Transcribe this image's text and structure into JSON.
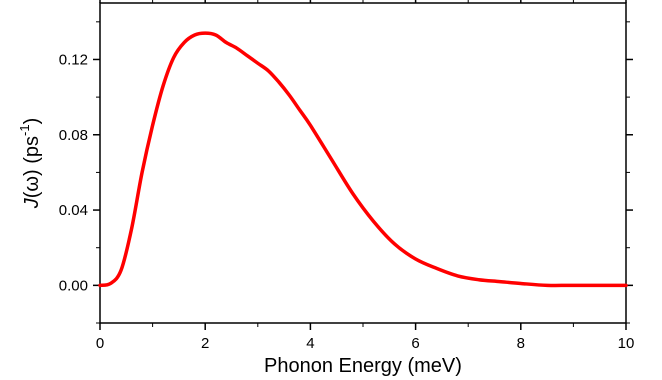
{
  "chart_data": {
    "type": "line",
    "title": "",
    "xlabel": "Phonon Energy (meV)",
    "ylabel": {
      "func": "J",
      "arg": "(ω)",
      "unit_open": "(ps",
      "unit_exp": "-1",
      "unit_close": ")"
    },
    "xlim": [
      0,
      10
    ],
    "ylim": [
      -0.02,
      0.15
    ],
    "xticks": [
      0,
      2,
      4,
      6,
      8,
      10
    ],
    "xtick_labels": [
      "0",
      "2",
      "4",
      "6",
      "8",
      "10"
    ],
    "yticks": [
      0.0,
      0.04,
      0.08,
      0.12
    ],
    "ytick_labels": [
      "0.00",
      "0.04",
      "0.08",
      "0.12"
    ],
    "grid": false,
    "series": [
      {
        "color": "#ff0000",
        "x": [
          0,
          0.2,
          0.4,
          0.6,
          0.8,
          1.0,
          1.2,
          1.4,
          1.6,
          1.8,
          2.0,
          2.2,
          2.4,
          2.6,
          2.8,
          3.0,
          3.2,
          3.4,
          3.6,
          3.8,
          4.0,
          4.4,
          4.8,
          5.2,
          5.6,
          6.0,
          6.4,
          6.8,
          7.2,
          7.6,
          8.0,
          8.5,
          9.0,
          10.0
        ],
        "y": [
          0.0,
          0.001,
          0.008,
          0.03,
          0.06,
          0.085,
          0.106,
          0.121,
          0.129,
          0.133,
          0.134,
          0.133,
          0.129,
          0.126,
          0.122,
          0.118,
          0.114,
          0.108,
          0.101,
          0.093,
          0.085,
          0.067,
          0.049,
          0.034,
          0.022,
          0.014,
          0.009,
          0.005,
          0.003,
          0.002,
          0.001,
          0.0,
          0.0,
          0.0
        ]
      }
    ]
  }
}
